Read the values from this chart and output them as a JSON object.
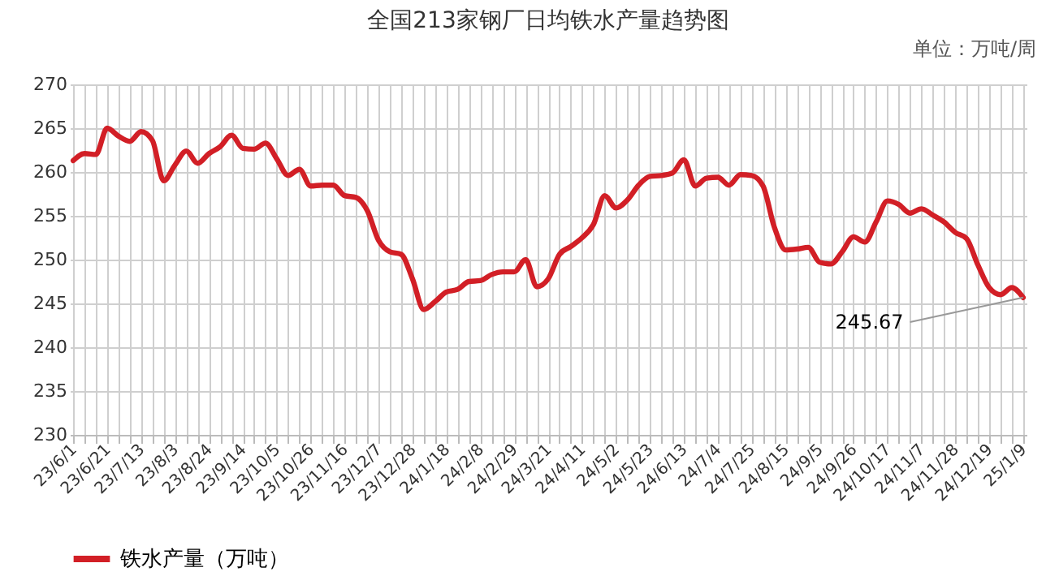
{
  "chart_data": {
    "type": "line",
    "title": "全国213家钢厂日均铁水产量趋势图",
    "categories": [
      "23/6/1",
      null,
      null,
      "23/6/21",
      null,
      null,
      "23/7/13",
      null,
      null,
      "23/8/3",
      null,
      null,
      "23/8/24",
      null,
      null,
      "23/9/14",
      null,
      null,
      "23/10/5",
      null,
      null,
      "23/10/26",
      null,
      null,
      "23/11/16",
      null,
      null,
      "23/12/7",
      null,
      null,
      "23/12/28",
      null,
      null,
      "24/1/18",
      null,
      null,
      "24/2/8",
      null,
      null,
      "24/2/29",
      null,
      null,
      "24/3/21",
      null,
      null,
      "24/4/11",
      null,
      null,
      "24/5/2",
      null,
      null,
      "24/5/23",
      null,
      null,
      "24/6/13",
      null,
      null,
      "24/7/4",
      null,
      null,
      "24/7/25",
      null,
      null,
      "24/8/15",
      null,
      null,
      "24/9/5",
      null,
      null,
      "24/9/26",
      null,
      null,
      "24/10/17",
      null,
      null,
      "24/11/7",
      null,
      null,
      "24/11/28",
      null,
      null,
      "24/12/19",
      null,
      null,
      "25/1/9"
    ],
    "series": [
      {
        "name": "铁水产量（万吨）",
        "color": "#d21f26",
        "values": [
          261.3,
          262.1,
          262.0,
          265.0,
          264.1,
          263.5,
          264.6,
          263.6,
          259.0,
          260.8,
          262.4,
          261.0,
          262.1,
          262.9,
          264.2,
          262.7,
          262.6,
          263.3,
          261.5,
          259.6,
          260.3,
          258.4,
          258.5,
          258.5,
          257.3,
          257.1,
          255.6,
          252.2,
          250.9,
          250.6,
          247.8,
          244.3,
          245.2,
          246.3,
          246.6,
          247.5,
          247.6,
          248.3,
          248.6,
          248.6,
          250.0,
          246.9,
          247.8,
          250.6,
          251.5,
          252.5,
          254.0,
          257.3,
          255.9,
          256.8,
          258.5,
          259.5,
          259.6,
          259.9,
          261.4,
          258.4,
          259.3,
          259.4,
          258.5,
          259.7,
          259.6,
          258.4,
          253.7,
          251.1,
          251.2,
          251.4,
          249.7,
          249.5,
          250.9,
          252.6,
          252.0,
          254.3,
          256.7,
          256.3,
          255.3,
          255.8,
          255.1,
          254.3,
          253.1,
          252.4,
          249.4,
          246.8,
          246.0,
          246.8,
          245.67
        ]
      }
    ],
    "ylim": [
      230,
      270
    ],
    "yticks": [
      230,
      235,
      240,
      245,
      250,
      255,
      260,
      265,
      270
    ],
    "grid": true,
    "legend": "bottom",
    "annotations": [
      "单位：万吨/周",
      {
        "text": "245.67",
        "x": "25/1/9",
        "y": 245.67
      }
    ]
  }
}
